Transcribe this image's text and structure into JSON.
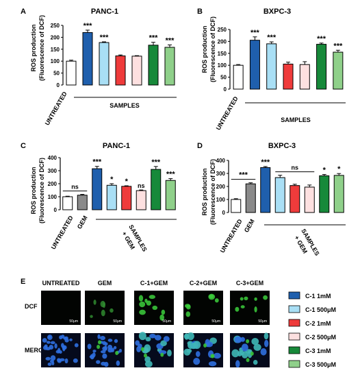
{
  "panels": {
    "A": {
      "letter": "A",
      "title": "PANC-1",
      "ylabel_line1": "ROS production",
      "ylabel_line2": "(Fluorescence of DCF)",
      "xlabel_left": "UNTREATED",
      "xlabel_group": "SAMPLES"
    },
    "B": {
      "letter": "B",
      "title": "BXPC-3",
      "ylabel_line1": "ROS production",
      "ylabel_line2": "(Fluorescence of DCF)",
      "xlabel_left": "UNTREATED",
      "xlabel_group": "SAMPLES"
    },
    "C": {
      "letter": "C",
      "title": "PANC-1",
      "ylabel_line1": "ROS production",
      "ylabel_line2": "(Fluorescence of DCF)",
      "xlabel_left": "UNTREATED",
      "xlabel_gem": "GEM",
      "xlabel_group_line1": "SAMPLES",
      "xlabel_group_line2": "+ GEM"
    },
    "D": {
      "letter": "D",
      "title": "BXPC-3",
      "ylabel_line1": "ROS production",
      "ylabel_line2": "(Fluorescence of DCF)",
      "xlabel_left": "UNTREATED",
      "xlabel_gem": "GEM",
      "xlabel_group_line1": "SAMPLES",
      "xlabel_group_line2": "+ GEM"
    }
  },
  "legend": [
    {
      "label": "C-1 1mM",
      "color": "#1f5fad"
    },
    {
      "label": "C-1 500μM",
      "color": "#a9dff5"
    },
    {
      "label": "C-2 1mM",
      "color": "#ef3b3b"
    },
    {
      "label": "C-2 500μM",
      "color": "#fde0e0"
    },
    {
      "label": "C-3 1mM",
      "color": "#17893a"
    },
    {
      "label": "C-3 500μM",
      "color": "#8fd08a"
    }
  ],
  "micro": {
    "letter": "E",
    "columns": [
      "UNTREATED",
      "GEM",
      "C-1+GEM",
      "C-2+GEM",
      "C-3+GEM"
    ],
    "rows": [
      "DCF",
      "MERGE"
    ],
    "scale_label": "50μm"
  },
  "chart_data": [
    {
      "panel": "A",
      "type": "bar",
      "title": "PANC-1",
      "ylabel": "ROS production (Fluorescence of DCF)",
      "ylim": [
        0,
        250
      ],
      "yticks": [
        0,
        50,
        100,
        150,
        200,
        250
      ],
      "categories": [
        "UNTREATED",
        "C-1 1mM",
        "C-1 500μM",
        "C-2 1mM",
        "C-2 500μM",
        "C-3 1mM",
        "C-3 500μM"
      ],
      "values": [
        100,
        220,
        178,
        122,
        121,
        167,
        158
      ],
      "errors": [
        4,
        10,
        3,
        4,
        2,
        12,
        10
      ],
      "colors": [
        "#ffffff",
        "#1f5fad",
        "#a9dff5",
        "#ef3b3b",
        "#fde0e0",
        "#17893a",
        "#8fd08a"
      ],
      "significance": [
        "",
        "***",
        "***",
        "",
        "",
        "***",
        "***"
      ]
    },
    {
      "panel": "B",
      "type": "bar",
      "title": "BXPC-3",
      "ylabel": "ROS production (Fluorescence of DCF)",
      "ylim": [
        0,
        250
      ],
      "yticks": [
        0,
        50,
        100,
        150,
        200,
        250
      ],
      "categories": [
        "UNTREATED",
        "C-1 1mM",
        "C-1 500μM",
        "C-2 1mM",
        "C-2 500μM",
        "C-3 1mM",
        "C-3 500μM"
      ],
      "values": [
        100,
        205,
        190,
        105,
        103,
        188,
        155
      ],
      "errors": [
        3,
        14,
        8,
        8,
        12,
        5,
        8
      ],
      "colors": [
        "#ffffff",
        "#1f5fad",
        "#a9dff5",
        "#ef3b3b",
        "#fde0e0",
        "#17893a",
        "#8fd08a"
      ],
      "significance": [
        "",
        "***",
        "***",
        "",
        "",
        "***",
        "***"
      ]
    },
    {
      "panel": "C",
      "type": "bar",
      "title": "PANC-1",
      "ylabel": "ROS production (Fluorescence of DCF)",
      "ylim": [
        0,
        400
      ],
      "yticks": [
        0,
        100,
        200,
        300,
        400
      ],
      "categories": [
        "UNTREATED",
        "GEM",
        "C-1 1mM",
        "C-1 500μM",
        "C-2 1mM",
        "C-2 500μM",
        "C-3 1mM",
        "C-3 500μM"
      ],
      "values": [
        100,
        112,
        315,
        188,
        180,
        147,
        310,
        225
      ],
      "errors": [
        4,
        6,
        18,
        12,
        4,
        5,
        22,
        14
      ],
      "colors": [
        "#ffffff",
        "#8a8a8a",
        "#1f5fad",
        "#a9dff5",
        "#ef3b3b",
        "#fde0e0",
        "#17893a",
        "#8fd08a"
      ],
      "significance": [
        "",
        "",
        "***",
        "*",
        "*",
        "ns",
        "***",
        "***"
      ],
      "bracket": {
        "from": 0,
        "to": 1,
        "label": "ns"
      }
    },
    {
      "panel": "D",
      "type": "bar",
      "title": "BXPC-3",
      "ylabel": "ROS production (Fluorescence of DCF)",
      "ylim": [
        0,
        400
      ],
      "yticks": [
        0,
        100,
        200,
        300,
        400
      ],
      "categories": [
        "UNTREATED",
        "GEM",
        "C-1 1mM",
        "C-1 500μM",
        "C-2 1mM",
        "C-2 500μM",
        "C-3 1mM",
        "C-3 500μM"
      ],
      "values": [
        100,
        220,
        345,
        268,
        207,
        195,
        282,
        285
      ],
      "errors": [
        6,
        8,
        8,
        18,
        10,
        16,
        10,
        14
      ],
      "colors": [
        "#ffffff",
        "#8a8a8a",
        "#1f5fad",
        "#a9dff5",
        "#ef3b3b",
        "#fde0e0",
        "#17893a",
        "#8fd08a"
      ],
      "significance": [
        "",
        "",
        "***",
        "",
        "",
        "",
        "*",
        "*"
      ],
      "bracket": {
        "from": 0,
        "to": 1,
        "label": "***"
      },
      "bracket2": {
        "from": 3,
        "to": 5,
        "label": "ns"
      }
    }
  ]
}
